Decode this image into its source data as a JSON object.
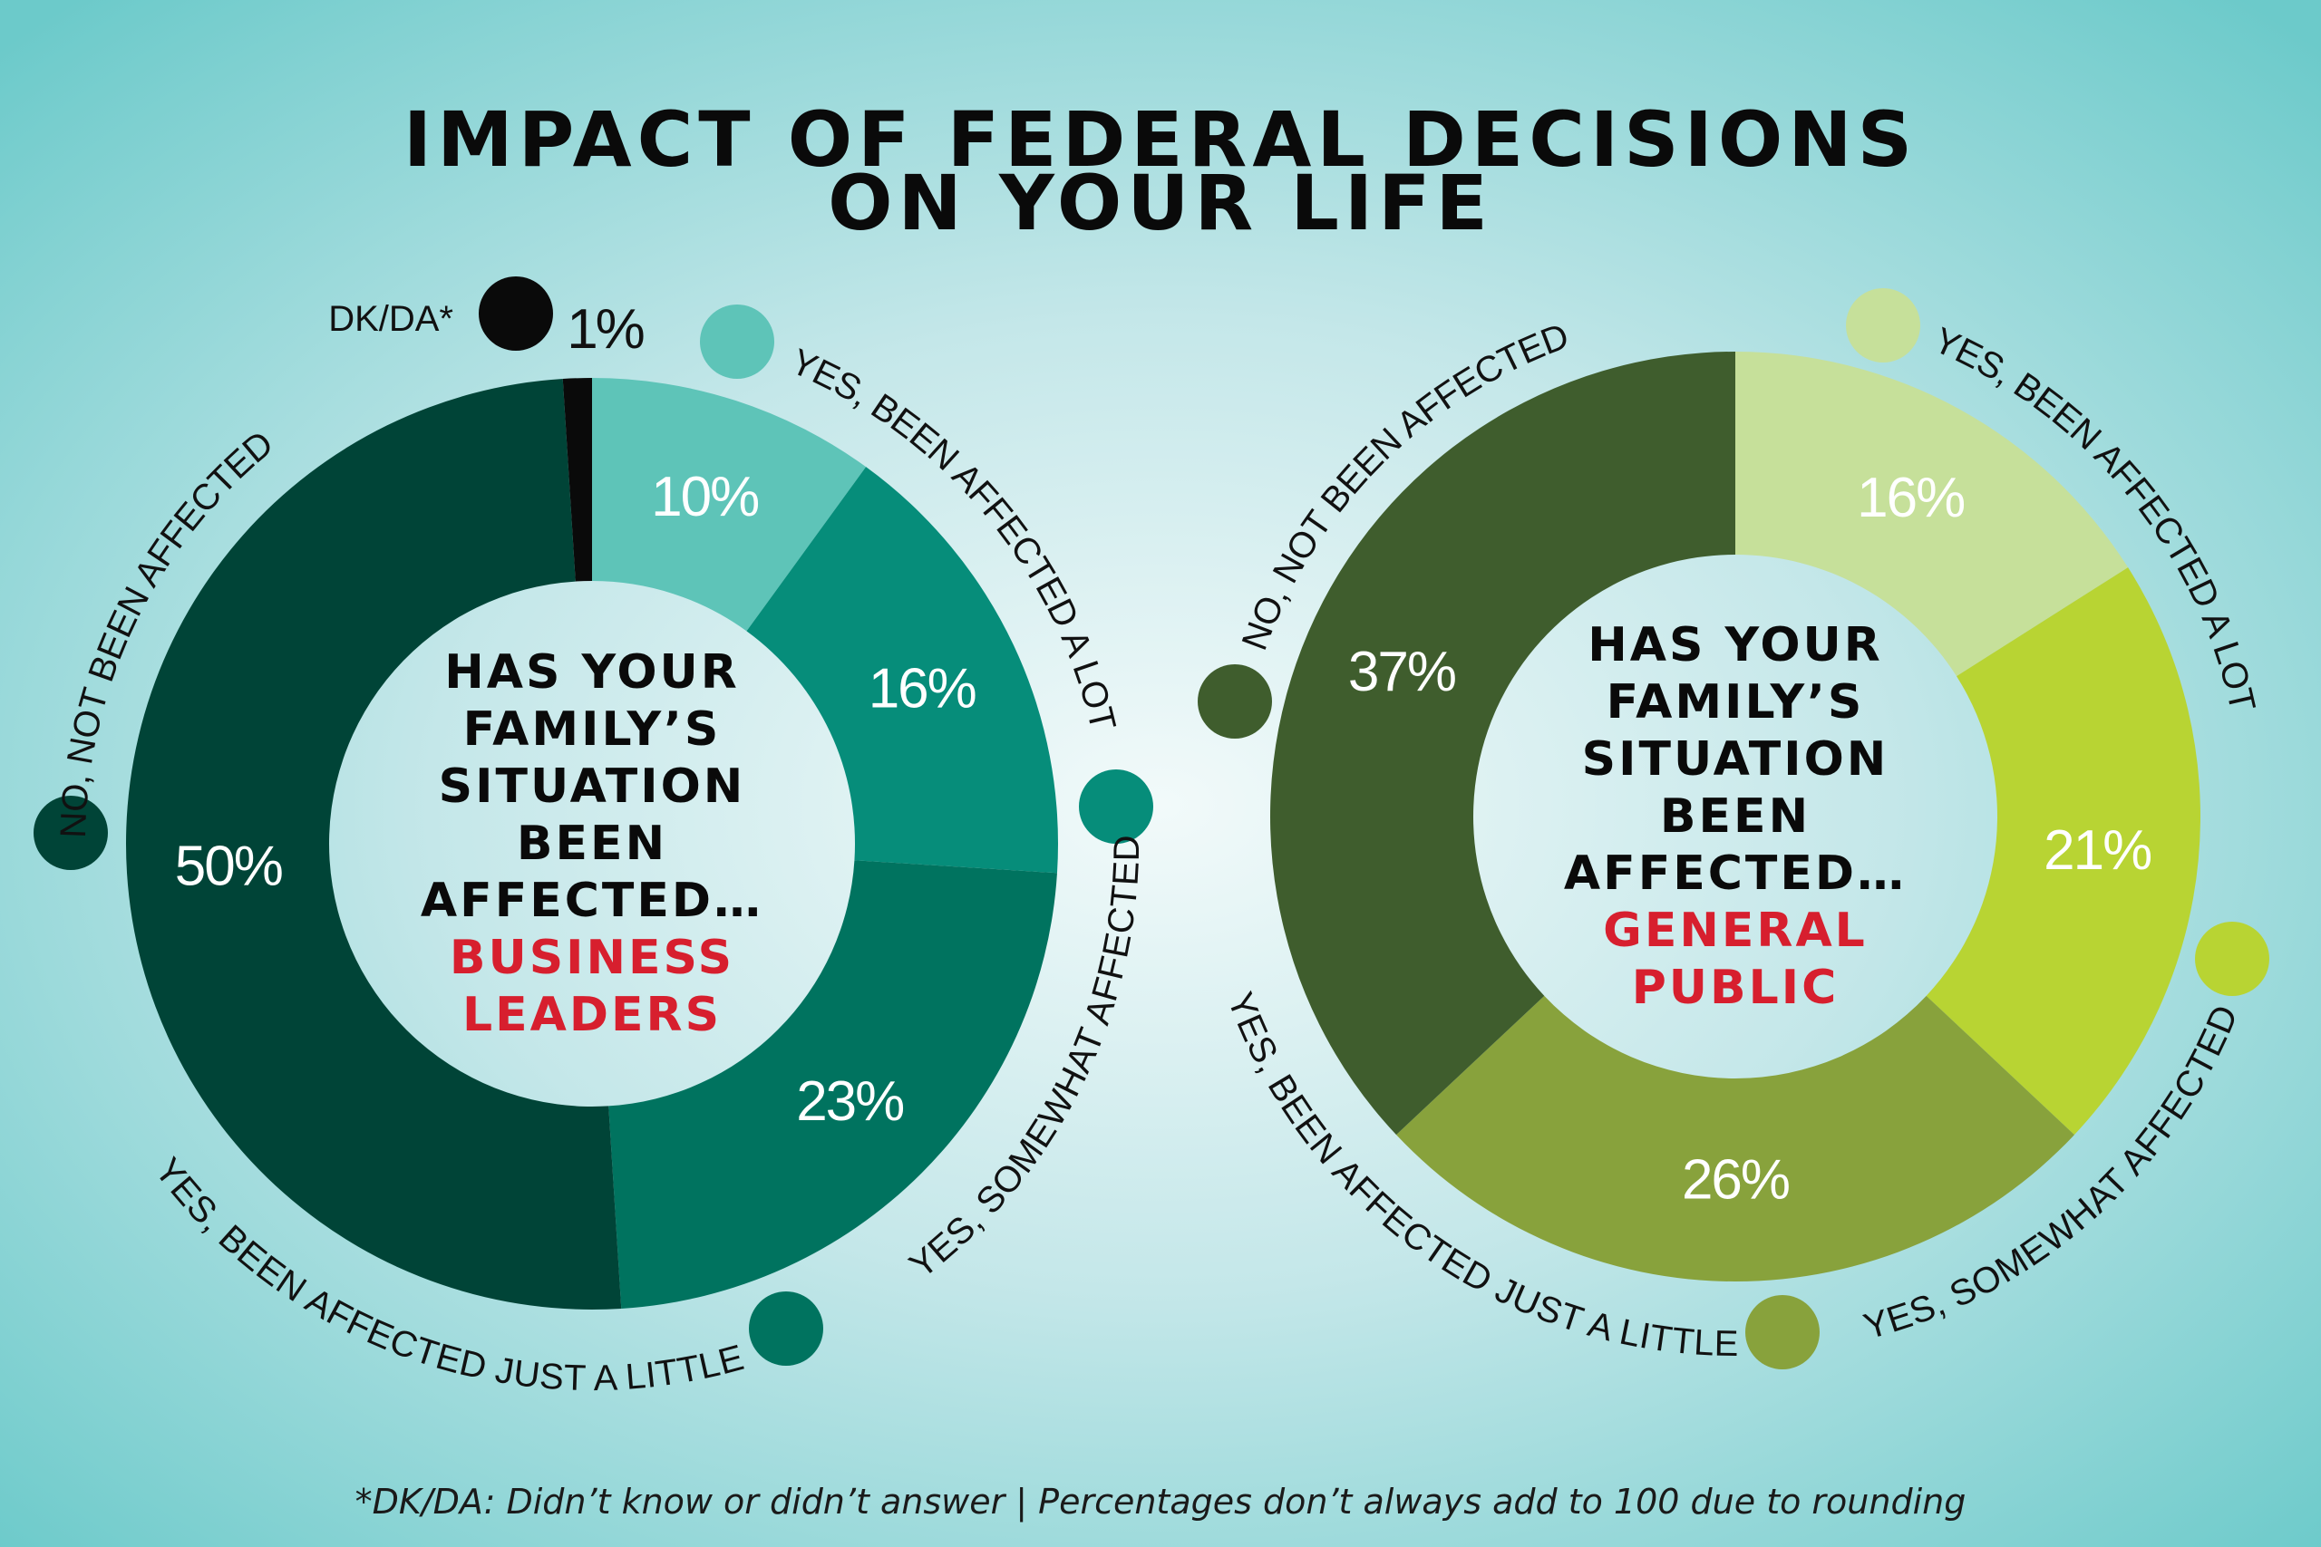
{
  "title_lines": [
    "IMPACT OF FEDERAL DECISIONS",
    "ON YOUR LIFE"
  ],
  "footnote": "*DK/DA: Didn’t know or didn’t answer | Percentages don’t always add to 100 due to rounding",
  "background_colors": {
    "center": "#f2fafa",
    "edge": "#6ccaca"
  },
  "chart_data": [
    {
      "type": "pie",
      "donut": true,
      "group": "BUSINESS LEADERS",
      "center_lines": [
        "HAS YOUR",
        "FAMILY’S",
        "SITUATION",
        "BEEN",
        "AFFECTED…"
      ],
      "center_highlight_lines": [
        "BUSINESS",
        "LEADERS"
      ],
      "start": "top",
      "direction": "clockwise",
      "slices": [
        {
          "label": "YES, BEEN AFFECTED A LOT",
          "value": 10,
          "value_label": "10%",
          "color": "#5ec4b8"
        },
        {
          "label": "YES, SOMEWHAT AFFECTED",
          "value": 16,
          "value_label": "16%",
          "color": "#068d7a"
        },
        {
          "label": "YES, BEEN AFFECTED JUST A LITTLE",
          "value": 23,
          "value_label": "23%",
          "color": "#00735f"
        },
        {
          "label": "NO, NOT BEEN AFFECTED",
          "value": 50,
          "value_label": "50%",
          "color": "#004437"
        },
        {
          "label": "DK/DA*",
          "value": 1,
          "value_label": "1%",
          "color": "#0a0a0a"
        }
      ]
    },
    {
      "type": "pie",
      "donut": true,
      "group": "GENERAL PUBLIC",
      "center_lines": [
        "HAS YOUR",
        "FAMILY’S",
        "SITUATION",
        "BEEN",
        "AFFECTED…"
      ],
      "center_highlight_lines": [
        "GENERAL",
        "PUBLIC"
      ],
      "start": "top",
      "direction": "clockwise",
      "slices": [
        {
          "label": "YES, BEEN AFFECTED A LOT",
          "value": 16,
          "value_label": "16%",
          "color": "#c6e09a"
        },
        {
          "label": "YES, SOMEWHAT AFFECTED",
          "value": 21,
          "value_label": "21%",
          "color": "#b8d433"
        },
        {
          "label": "YES, BEEN AFFECTED JUST A LITTLE",
          "value": 26,
          "value_label": "26%",
          "color": "#88a23c"
        },
        {
          "label": "NO, NOT BEEN AFFECTED",
          "value": 37,
          "value_label": "37%",
          "color": "#3f5d2d"
        }
      ]
    }
  ]
}
